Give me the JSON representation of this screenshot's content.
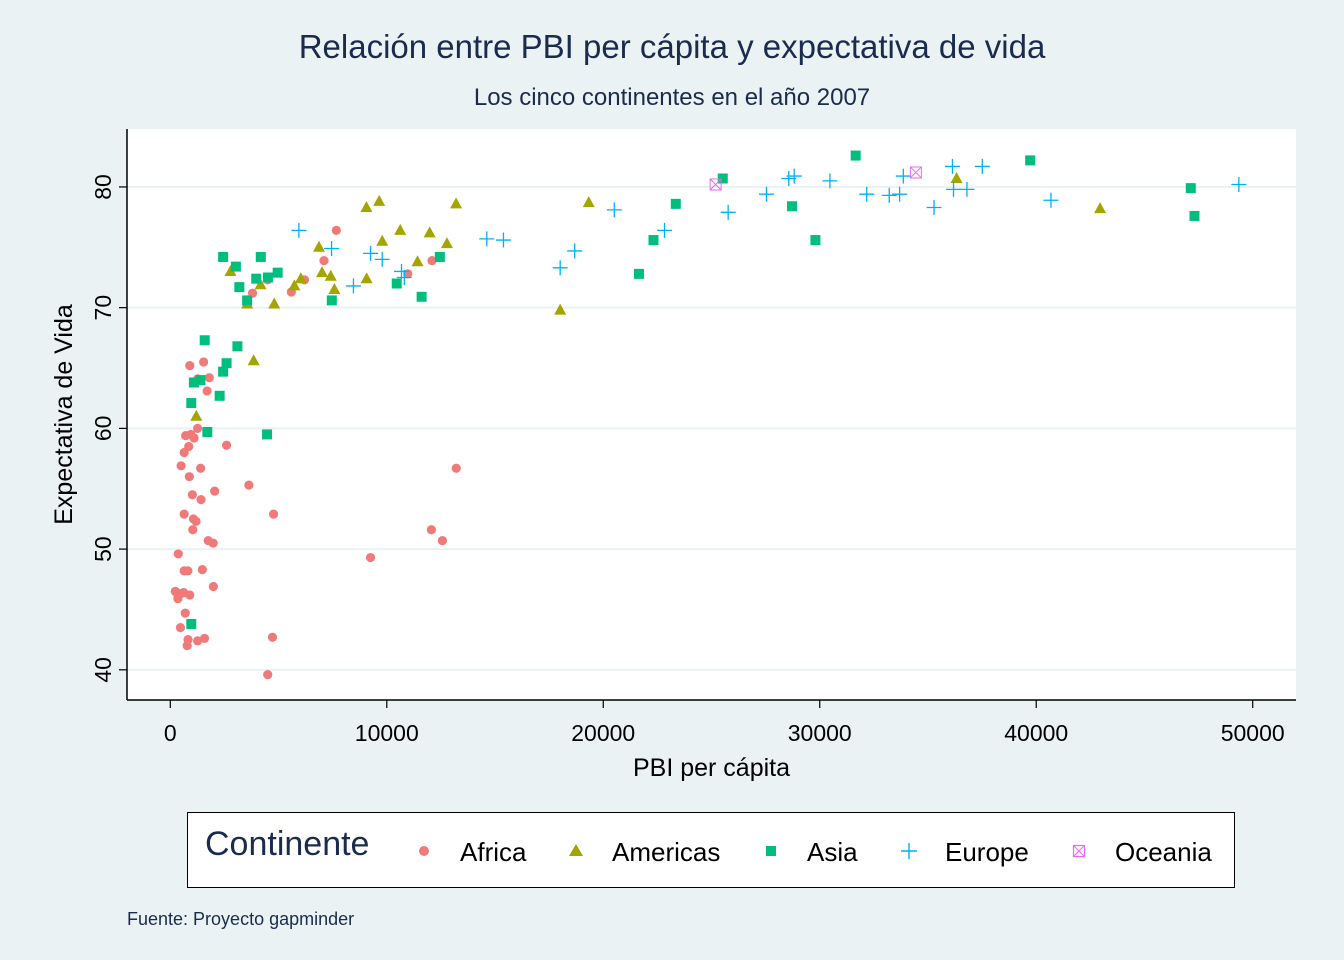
{
  "chart_data": {
    "type": "scatter",
    "title": "Relación entre PBI per cápita y expectativa de vida",
    "subtitle": "Los cinco continentes en el año 2007",
    "xlabel": "PBI per cápita",
    "ylabel": "Expectativa de Vida",
    "xlim": [
      -2000,
      52000
    ],
    "ylim": [
      37.5,
      84.8
    ],
    "xticks": [
      0,
      10000,
      20000,
      30000,
      40000,
      50000
    ],
    "xtick_labels": [
      "0",
      "10000",
      "20000",
      "30000",
      "40000",
      "50000"
    ],
    "yticks": [
      40,
      50,
      60,
      70,
      80
    ],
    "ytick_labels": [
      "40",
      "50",
      "60",
      "70",
      "80"
    ],
    "grid": true,
    "legend_position": "bottom",
    "legend_title": "Continente",
    "source_note": "Fuente: Proyecto gapminder",
    "series": [
      {
        "name": "Africa",
        "marker": "circle",
        "color": "#f07a7a",
        "points": [
          [
            780,
            42.0
          ],
          [
            820,
            42.5
          ],
          [
            1260,
            42.4
          ],
          [
            1580,
            42.6
          ],
          [
            4720,
            42.7
          ],
          [
            4500,
            39.6
          ],
          [
            230,
            46.5
          ],
          [
            290,
            46.4
          ],
          [
            350,
            45.9
          ],
          [
            480,
            46.3
          ],
          [
            620,
            46.4
          ],
          [
            690,
            44.7
          ],
          [
            900,
            46.2
          ],
          [
            470,
            43.5
          ],
          [
            370,
            49.6
          ],
          [
            640,
            48.2
          ],
          [
            810,
            48.2
          ],
          [
            1480,
            48.3
          ],
          [
            1990,
            46.9
          ],
          [
            4770,
            52.9
          ],
          [
            640,
            52.9
          ],
          [
            1070,
            52.5
          ],
          [
            1190,
            52.3
          ],
          [
            1750,
            50.7
          ],
          [
            1980,
            50.5
          ],
          [
            1040,
            51.6
          ],
          [
            9250,
            49.3
          ],
          [
            12060,
            51.6
          ],
          [
            12570,
            50.7
          ],
          [
            13210,
            56.7
          ],
          [
            1020,
            54.5
          ],
          [
            1420,
            54.1
          ],
          [
            2050,
            54.8
          ],
          [
            3630,
            55.3
          ],
          [
            880,
            56.0
          ],
          [
            1400,
            56.7
          ],
          [
            500,
            56.9
          ],
          [
            640,
            58.0
          ],
          [
            850,
            58.5
          ],
          [
            950,
            59.5
          ],
          [
            710,
            59.4
          ],
          [
            1260,
            60.0
          ],
          [
            2600,
            58.6
          ],
          [
            1100,
            59.2
          ],
          [
            1540,
            65.5
          ],
          [
            900,
            65.2
          ],
          [
            1700,
            63.1
          ],
          [
            1800,
            64.2
          ],
          [
            1270,
            64.1
          ],
          [
            3800,
            71.2
          ],
          [
            4500,
            72.3
          ],
          [
            5590,
            71.3
          ],
          [
            6200,
            72.3
          ],
          [
            7100,
            73.9
          ],
          [
            7670,
            76.4
          ],
          [
            10970,
            72.8
          ],
          [
            12090,
            73.9
          ]
        ]
      },
      {
        "name": "Americas",
        "marker": "triangle",
        "color": "#a3a500",
        "points": [
          [
            1200,
            61.0
          ],
          [
            3850,
            65.6
          ],
          [
            3550,
            70.3
          ],
          [
            4800,
            70.3
          ],
          [
            2780,
            73.0
          ],
          [
            4170,
            71.9
          ],
          [
            5730,
            71.8
          ],
          [
            6030,
            72.4
          ],
          [
            7010,
            72.9
          ],
          [
            7410,
            72.6
          ],
          [
            7580,
            71.5
          ],
          [
            9070,
            72.4
          ],
          [
            11420,
            73.8
          ],
          [
            12780,
            75.3
          ],
          [
            6870,
            75.0
          ],
          [
            9790,
            75.5
          ],
          [
            10620,
            76.4
          ],
          [
            11980,
            76.2
          ],
          [
            9060,
            78.3
          ],
          [
            9650,
            78.8
          ],
          [
            13200,
            78.6
          ],
          [
            18010,
            69.8
          ],
          [
            19330,
            78.7
          ],
          [
            36320,
            80.7
          ],
          [
            42950,
            78.2
          ]
        ]
      },
      {
        "name": "Asia",
        "marker": "square",
        "color": "#00bf7d",
        "points": [
          [
            970,
            43.8
          ],
          [
            970,
            62.1
          ],
          [
            1090,
            63.8
          ],
          [
            1390,
            64.0
          ],
          [
            1590,
            67.3
          ],
          [
            1710,
            59.7
          ],
          [
            2280,
            62.7
          ],
          [
            2440,
            64.7
          ],
          [
            2600,
            65.4
          ],
          [
            3100,
            66.8
          ],
          [
            4470,
            59.5
          ],
          [
            2440,
            74.2
          ],
          [
            3030,
            73.4
          ],
          [
            3190,
            71.7
          ],
          [
            3550,
            70.6
          ],
          [
            3970,
            72.4
          ],
          [
            4180,
            74.2
          ],
          [
            4510,
            72.5
          ],
          [
            4960,
            72.9
          ],
          [
            7460,
            70.6
          ],
          [
            10460,
            72.0
          ],
          [
            11610,
            70.9
          ],
          [
            12450,
            74.2
          ],
          [
            21650,
            72.8
          ],
          [
            22320,
            75.6
          ],
          [
            23350,
            78.6
          ],
          [
            25520,
            80.7
          ],
          [
            28720,
            78.4
          ],
          [
            29800,
            75.6
          ],
          [
            31660,
            82.6
          ],
          [
            39720,
            82.2
          ],
          [
            47140,
            79.9
          ],
          [
            47310,
            77.6
          ]
        ]
      },
      {
        "name": "Europe",
        "marker": "plus",
        "color": "#00b0f6",
        "points": [
          [
            5940,
            76.4
          ],
          [
            7450,
            74.9
          ],
          [
            8460,
            71.8
          ],
          [
            9250,
            74.5
          ],
          [
            9790,
            74.0
          ],
          [
            10680,
            73.0
          ],
          [
            10810,
            72.5
          ],
          [
            14620,
            75.7
          ],
          [
            15390,
            75.6
          ],
          [
            18010,
            73.3
          ],
          [
            18680,
            74.7
          ],
          [
            20510,
            78.1
          ],
          [
            22830,
            76.4
          ],
          [
            25770,
            77.9
          ],
          [
            27540,
            79.4
          ],
          [
            28570,
            80.7
          ],
          [
            28820,
            80.9
          ],
          [
            30470,
            80.5
          ],
          [
            32170,
            79.4
          ],
          [
            33210,
            79.3
          ],
          [
            33690,
            79.4
          ],
          [
            33860,
            80.9
          ],
          [
            35280,
            78.3
          ],
          [
            36130,
            81.7
          ],
          [
            36180,
            79.8
          ],
          [
            36800,
            79.8
          ],
          [
            37510,
            81.7
          ],
          [
            40680,
            78.9
          ],
          [
            49360,
            80.2
          ]
        ]
      },
      {
        "name": "Oceania",
        "marker": "boxx",
        "color": "#e76bf3",
        "points": [
          [
            25190,
            80.2
          ],
          [
            34440,
            81.2
          ]
        ]
      }
    ]
  }
}
